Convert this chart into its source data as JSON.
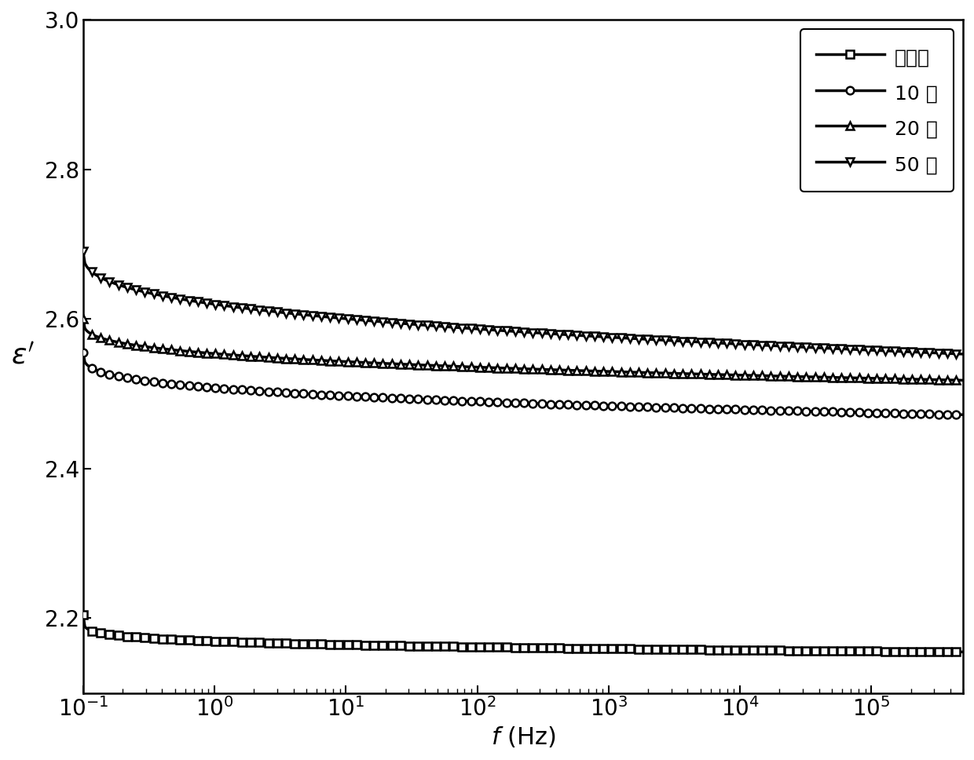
{
  "title": "",
  "xlim": [
    0.1,
    500000
  ],
  "ylim": [
    2.1,
    3.0
  ],
  "yticks": [
    2.2,
    2.4,
    2.6,
    2.8,
    3.0
  ],
  "series": [
    {
      "label": "未老化",
      "marker": "s",
      "start_val": 2.205,
      "end_val": 2.155,
      "power": 0.18
    },
    {
      "label": "10 天",
      "marker": "o",
      "start_val": 2.555,
      "end_val": 2.472,
      "power": 0.3
    },
    {
      "label": "20 天",
      "marker": "^",
      "start_val": 2.6,
      "end_val": 2.518,
      "power": 0.3
    },
    {
      "label": "50 天",
      "marker": "v",
      "start_val": 2.69,
      "end_val": 2.553,
      "power": 0.35
    }
  ],
  "line_color": "black",
  "linewidth": 2.5,
  "markersize": 7,
  "background_color": "white",
  "legend_fontsize": 18,
  "axis_label_fontsize": 22,
  "tick_fontsize": 20
}
